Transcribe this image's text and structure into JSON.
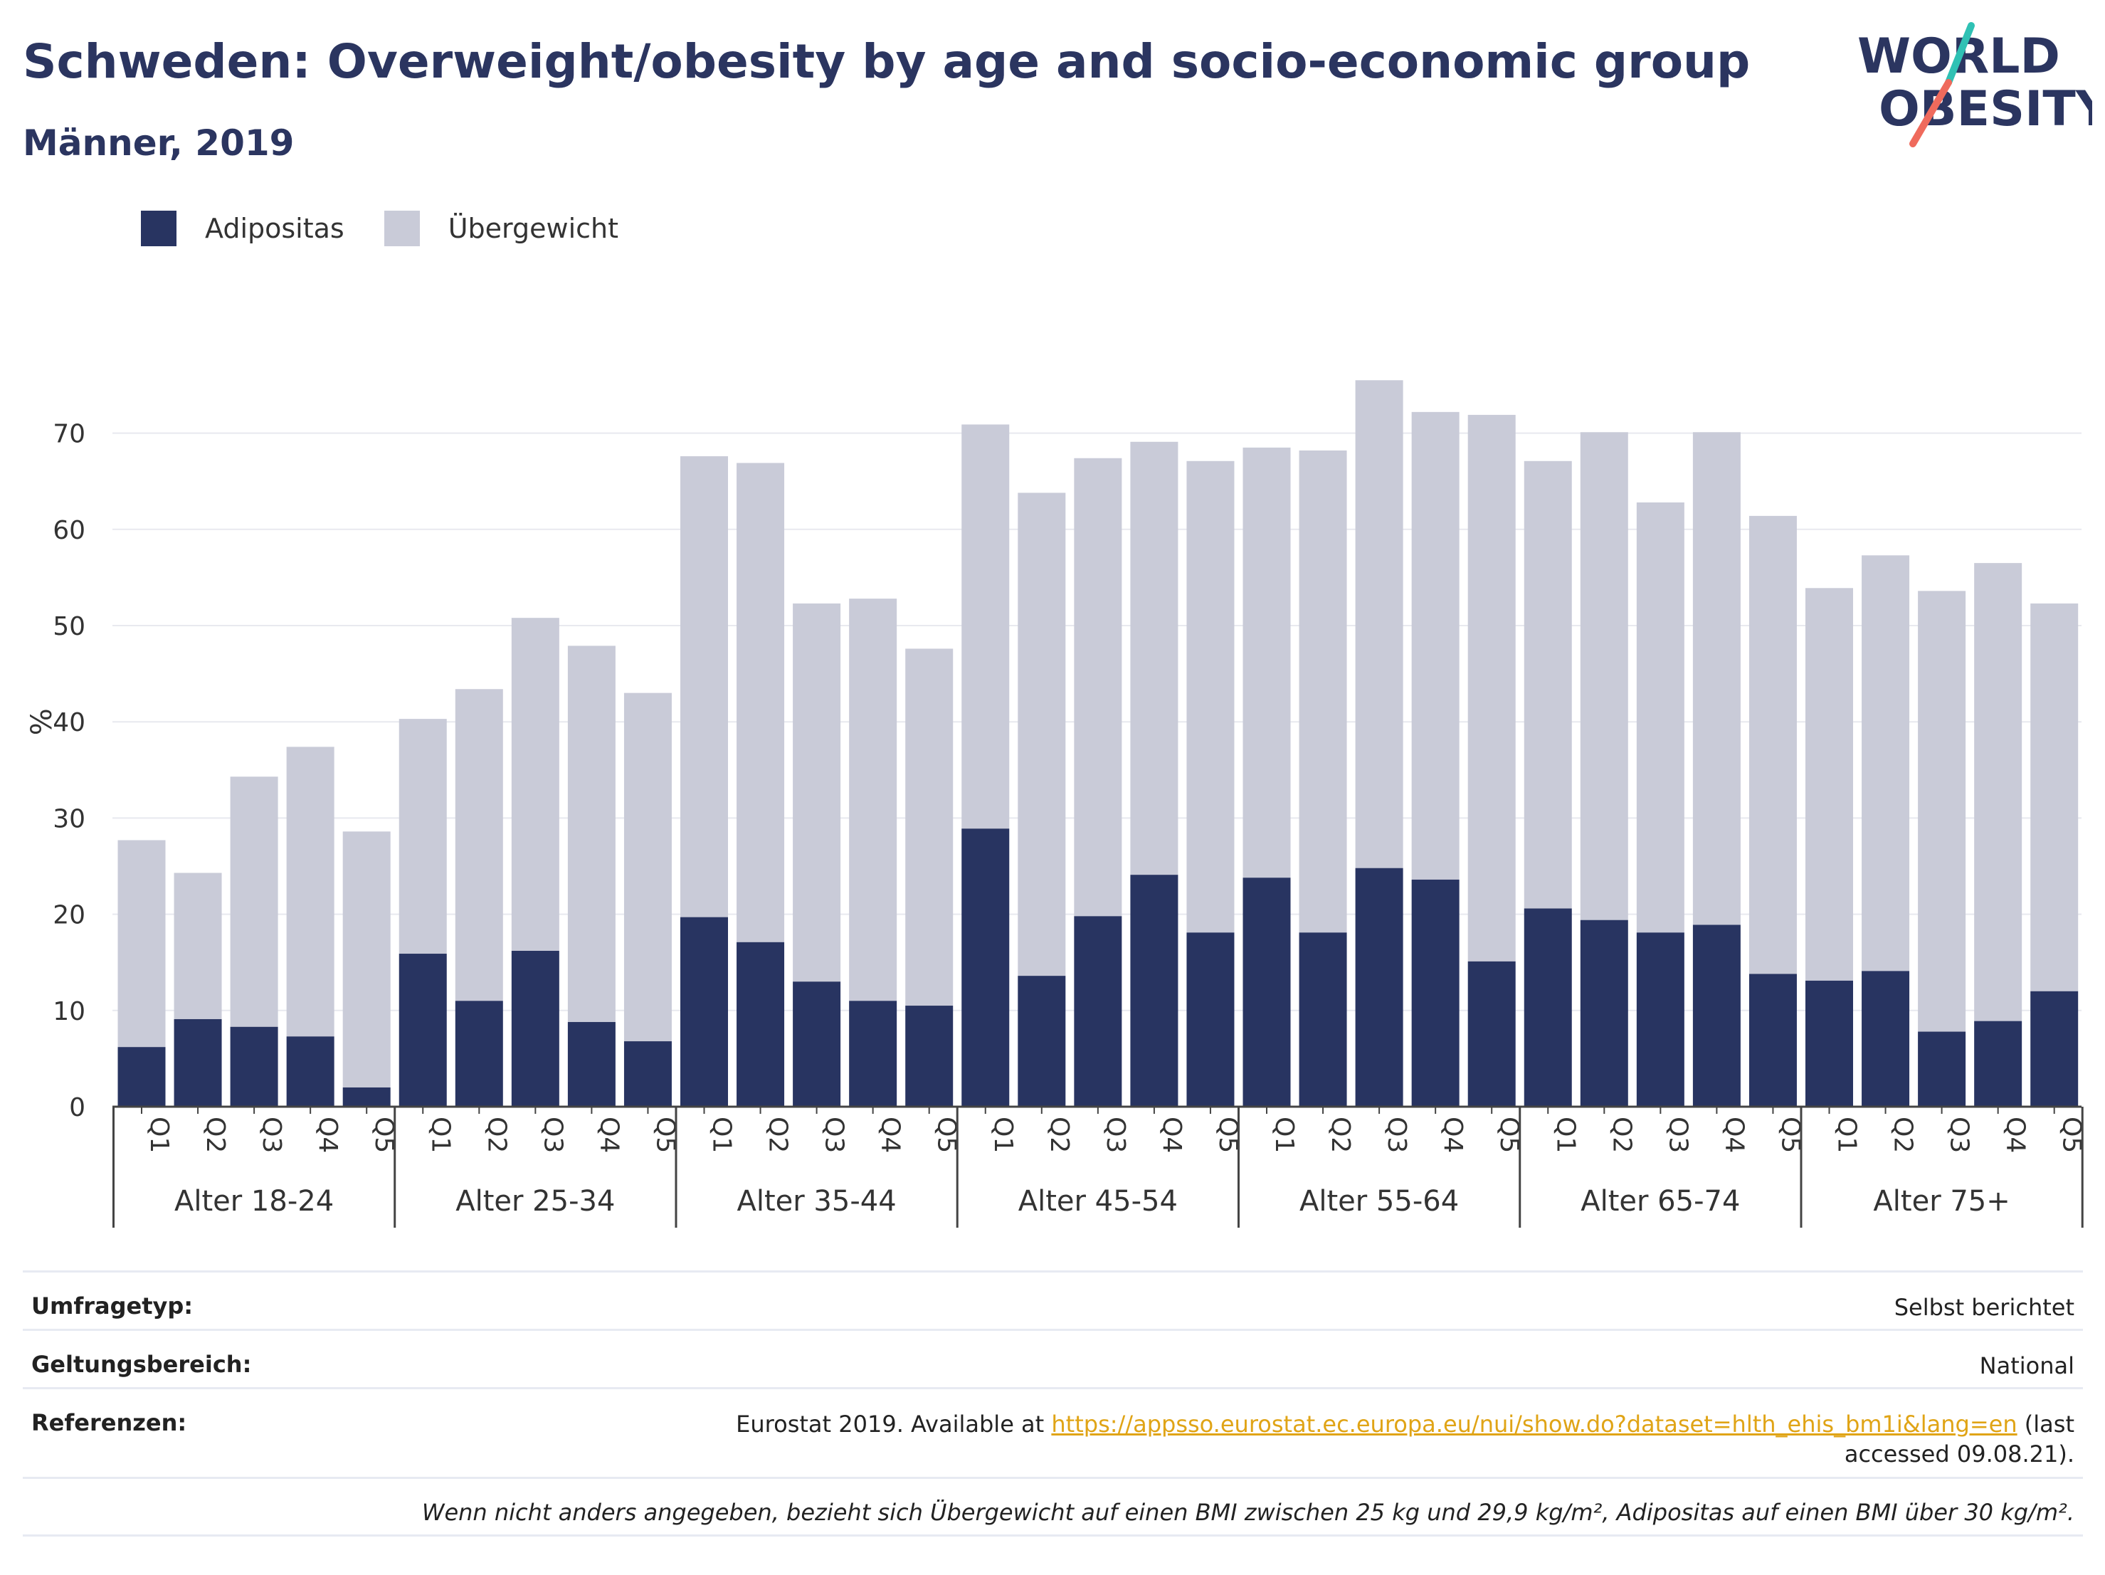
{
  "title": "Schweden: Overweight/obesity by age and socio-economic group",
  "subtitle": "Männer, 2019",
  "logo": {
    "line1": "WORLD",
    "line2": "OBESITY"
  },
  "colors": {
    "obesity": "#283461",
    "overweight": "#c9cbd8",
    "title": "#2b3560",
    "accent_teal": "#2fc1b4",
    "accent_red": "#ef6a5c",
    "link": "#e0a416"
  },
  "legend": [
    {
      "label": "Adipositas",
      "color": "#283461"
    },
    {
      "label": "Übergewicht",
      "color": "#c9cbd8"
    }
  ],
  "chart_data": {
    "type": "bar",
    "stacked": true,
    "ylabel": "%",
    "ylim": [
      0,
      80
    ],
    "yticks": [
      0,
      10,
      20,
      30,
      40,
      50,
      60,
      70
    ],
    "grid": true,
    "legend_position": "top-left",
    "groups": [
      {
        "label": "Alter 18-24",
        "categories": [
          "Q1",
          "Q2",
          "Q3",
          "Q4",
          "Q5"
        ],
        "obesity": [
          6.2,
          9.1,
          8.3,
          7.3,
          2.0
        ],
        "total": [
          27.7,
          24.3,
          34.3,
          37.4,
          28.6
        ]
      },
      {
        "label": "Alter 25-34",
        "categories": [
          "Q1",
          "Q2",
          "Q3",
          "Q4",
          "Q5"
        ],
        "obesity": [
          15.9,
          11.0,
          16.2,
          8.8,
          6.8
        ],
        "total": [
          40.3,
          43.4,
          50.8,
          47.9,
          43.0
        ]
      },
      {
        "label": "Alter 35-44",
        "categories": [
          "Q1",
          "Q2",
          "Q3",
          "Q4",
          "Q5"
        ],
        "obesity": [
          19.7,
          17.1,
          13.0,
          11.0,
          10.5
        ],
        "total": [
          67.6,
          66.9,
          52.3,
          52.8,
          47.6
        ]
      },
      {
        "label": "Alter 45-54",
        "categories": [
          "Q1",
          "Q2",
          "Q3",
          "Q4",
          "Q5"
        ],
        "obesity": [
          28.9,
          13.6,
          19.8,
          24.1,
          18.1
        ],
        "total": [
          70.9,
          63.8,
          67.4,
          69.1,
          67.1
        ]
      },
      {
        "label": "Alter 55-64",
        "categories": [
          "Q1",
          "Q2",
          "Q3",
          "Q4",
          "Q5"
        ],
        "obesity": [
          23.8,
          18.1,
          24.8,
          23.6,
          15.1
        ],
        "total": [
          68.5,
          68.2,
          75.5,
          72.2,
          71.9
        ]
      },
      {
        "label": "Alter 65-74",
        "categories": [
          "Q1",
          "Q2",
          "Q3",
          "Q4",
          "Q5"
        ],
        "obesity": [
          20.6,
          19.4,
          18.1,
          18.9,
          13.8
        ],
        "total": [
          67.1,
          70.1,
          62.8,
          70.1,
          61.4
        ]
      },
      {
        "label": "Alter 75+",
        "categories": [
          "Q1",
          "Q2",
          "Q3",
          "Q4",
          "Q5"
        ],
        "obesity": [
          13.1,
          14.1,
          7.8,
          8.9,
          12.0
        ],
        "total": [
          53.9,
          57.3,
          53.6,
          56.5,
          52.3
        ]
      }
    ],
    "series": [
      {
        "name": "Adipositas"
      },
      {
        "name": "Übergewicht"
      }
    ]
  },
  "footer": {
    "survey_label": "Umfragetyp:",
    "survey_value": "Selbst berichtet",
    "scope_label": "Geltungsbereich:",
    "scope_value": "National",
    "ref_label": "Referenzen:",
    "ref_prefix": "Eurostat 2019. Available at ",
    "ref_link": "https://appsso.eurostat.ec.europa.eu/nui/show.do?dataset=hlth_ehis_bm1i&lang=en",
    "ref_suffix": " (last accessed 09.08.21).",
    "note": "Wenn nicht anders angegeben, bezieht sich Übergewicht auf einen BMI zwischen 25 kg und 29,9 kg/m², Adipositas auf einen BMI über 30 kg/m²."
  }
}
